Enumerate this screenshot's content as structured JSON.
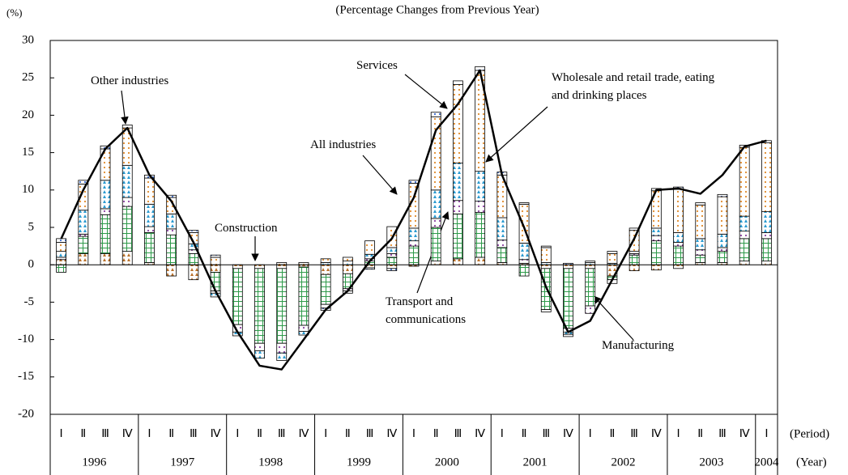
{
  "chart_data": {
    "type": "bar",
    "title": "(Percentage Changes from Previous Year)",
    "y_label": "(%)",
    "x_label_period": "(Period)",
    "x_label_year": "(Year)",
    "categories": [
      "Ⅰ",
      "Ⅱ",
      "Ⅲ",
      "Ⅳ",
      "Ⅰ",
      "Ⅱ",
      "Ⅲ",
      "Ⅳ",
      "Ⅰ",
      "Ⅱ",
      "Ⅲ",
      "Ⅳ",
      "Ⅰ",
      "Ⅱ",
      "Ⅲ",
      "Ⅳ",
      "Ⅰ",
      "Ⅱ",
      "Ⅲ",
      "Ⅳ",
      "Ⅰ",
      "Ⅱ",
      "Ⅲ",
      "Ⅳ",
      "Ⅰ",
      "Ⅱ",
      "Ⅲ",
      "Ⅳ",
      "Ⅰ",
      "Ⅱ",
      "Ⅲ",
      "Ⅳ",
      "Ⅰ"
    ],
    "years": [
      "1996",
      "1997",
      "1998",
      "1999",
      "2000",
      "2001",
      "2002",
      "2003",
      "2004"
    ],
    "ylim": [
      -20,
      30
    ],
    "yticks": [
      -20,
      -15,
      -10,
      -5,
      0,
      5,
      10,
      15,
      20,
      25,
      30
    ],
    "series": [
      {
        "name": "Construction",
        "color": "#b8702a",
        "pattern": "triangles",
        "values": [
          0.7,
          1.5,
          1.5,
          1.8,
          0.3,
          -1.5,
          -2,
          -1,
          -0.5,
          -0.5,
          -0.5,
          -0.3,
          -1.3,
          -1.2,
          -0.4,
          -0.5,
          -0.2,
          0.5,
          0.8,
          1.0,
          0.3,
          0.2,
          -0.5,
          -0.5,
          -0.5,
          -1.5,
          -0.8,
          -0.7,
          -0.5,
          0.3,
          0.3,
          0.5,
          0.5
        ]
      },
      {
        "name": "Manufacturing",
        "color": "#2e9a4a",
        "pattern": "grid",
        "values": [
          -1,
          2.3,
          5.2,
          6.0,
          4.0,
          4.0,
          1.5,
          -2.5,
          -7.5,
          -10,
          -10,
          -7.8,
          -4,
          -2,
          0.5,
          1.0,
          2.5,
          4.5,
          6,
          6,
          2,
          -1.5,
          -5.5,
          -8,
          -5,
          -0.5,
          1.3,
          3.2,
          2.5,
          1.0,
          1.5,
          3.0,
          3.0
        ]
      },
      {
        "name": "Transport and communications",
        "color": "#8a3fa0",
        "pattern": "dots",
        "values": [
          0.3,
          0.3,
          0.8,
          1.2,
          0.8,
          0.8,
          0.5,
          -0.3,
          -1,
          -1,
          -1.3,
          -0.8,
          -0.5,
          -0.3,
          0.3,
          0.5,
          0.7,
          1.2,
          1.8,
          1.5,
          1.0,
          0.5,
          -0.3,
          -0.5,
          -1,
          -0.5,
          0.2,
          0.7,
          0.5,
          0.7,
          0.5,
          1.0,
          0.8
        ]
      },
      {
        "name": "Wholesale and retail trade, eating and drinking places",
        "color": "#2a9ad0",
        "pattern": "triangles",
        "values": [
          0.8,
          3.2,
          3.8,
          4.3,
          3.0,
          2.0,
          0.8,
          -0.5,
          -0.5,
          -1,
          -1,
          -0.5,
          0.3,
          0.5,
          0.6,
          0.8,
          1.7,
          3.8,
          5.0,
          4.0,
          3.0,
          2.2,
          0.3,
          -0.3,
          0.3,
          0.2,
          0.3,
          1.0,
          1.3,
          1.5,
          1.8,
          2.0,
          2.8
        ]
      },
      {
        "name": "Services",
        "color": "#e08a2a",
        "pattern": "dots",
        "values": [
          1.2,
          3.5,
          4.2,
          5.0,
          3.5,
          2.2,
          1.5,
          1.0,
          0,
          0,
          0.3,
          0.3,
          0.5,
          0.5,
          1.8,
          2.8,
          6.0,
          9.8,
          10.5,
          13.5,
          5.7,
          5.2,
          2.0,
          -0.3,
          0.2,
          1.3,
          2.8,
          5.0,
          5.8,
          4.5,
          5.0,
          9.2,
          9.2
        ]
      },
      {
        "name": "Other industries",
        "color": "#3a6ad0",
        "pattern": "dots",
        "values": [
          0.5,
          0.5,
          0.4,
          0.4,
          0.4,
          0.3,
          0.3,
          0.3,
          0,
          0,
          0,
          0,
          -0.3,
          -0.3,
          -0.2,
          -0.3,
          0.4,
          0.6,
          0.5,
          0.5,
          0.4,
          0.2,
          0.2,
          0.2,
          0,
          0.3,
          0.3,
          0.3,
          0.3,
          0.3,
          0.3,
          0.3,
          0.3
        ]
      }
    ],
    "line": {
      "name": "All industries",
      "color": "#000000",
      "values": [
        3.5,
        10,
        15.5,
        18.3,
        12,
        8.5,
        3,
        -3.5,
        -9,
        -13.5,
        -14,
        -10,
        -6,
        -3.5,
        0.5,
        3.5,
        9,
        18,
        21.5,
        26,
        12,
        5,
        -3,
        -9,
        -7.5,
        -2,
        3.5,
        10,
        10.2,
        9.5,
        12,
        15.8,
        16.6
      ]
    }
  }
}
